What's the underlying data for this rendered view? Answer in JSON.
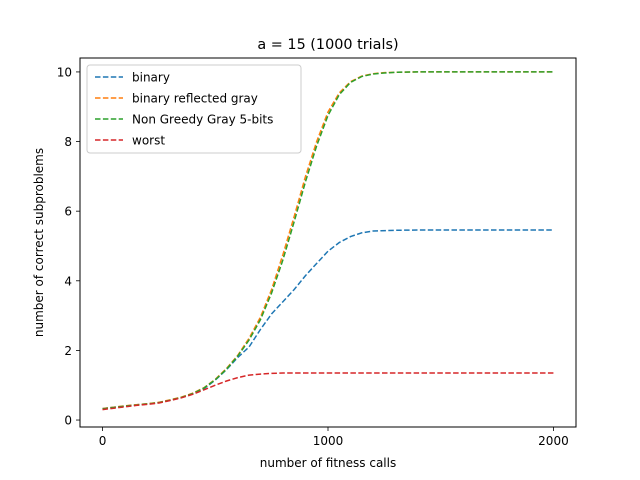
{
  "chart_data": {
    "type": "line",
    "title": "a = 15 (1000 trials)",
    "xlabel": "number of fitness calls",
    "ylabel": "number of correct subproblems",
    "xlim": [
      -100,
      2100
    ],
    "ylim": [
      -0.2,
      10.4
    ],
    "xticks": [
      0,
      1000,
      2000
    ],
    "yticks": [
      0,
      2,
      4,
      6,
      8,
      10
    ],
    "grid": false,
    "legend_position": "top-left",
    "series": [
      {
        "name": "binary",
        "color": "#1f77b4",
        "x": [
          0,
          50,
          100,
          150,
          200,
          250,
          300,
          350,
          400,
          450,
          500,
          550,
          600,
          650,
          700,
          750,
          800,
          850,
          900,
          950,
          1000,
          1050,
          1100,
          1150,
          1200,
          1300,
          1400,
          1500,
          1600,
          1700,
          1800,
          1900,
          2000
        ],
        "y": [
          0.33,
          0.37,
          0.4,
          0.44,
          0.47,
          0.5,
          0.57,
          0.65,
          0.75,
          0.9,
          1.15,
          1.45,
          1.8,
          2.1,
          2.6,
          3.05,
          3.4,
          3.75,
          4.15,
          4.5,
          4.85,
          5.1,
          5.27,
          5.38,
          5.43,
          5.45,
          5.46,
          5.46,
          5.46,
          5.46,
          5.46,
          5.46,
          5.46
        ]
      },
      {
        "name": "binary reflected gray",
        "color": "#ff7f0e",
        "x": [
          0,
          50,
          100,
          150,
          200,
          250,
          300,
          350,
          400,
          450,
          500,
          550,
          600,
          650,
          700,
          750,
          800,
          850,
          900,
          950,
          1000,
          1050,
          1100,
          1150,
          1200,
          1250,
          1300,
          1400,
          1500,
          1600,
          1700,
          1800,
          1900,
          2000
        ],
        "y": [
          0.33,
          0.37,
          0.41,
          0.44,
          0.47,
          0.51,
          0.58,
          0.66,
          0.77,
          0.93,
          1.17,
          1.48,
          1.86,
          2.35,
          2.95,
          3.75,
          4.75,
          5.85,
          7.0,
          8.0,
          8.85,
          9.4,
          9.72,
          9.88,
          9.95,
          9.98,
          9.99,
          10.0,
          10.0,
          10.0,
          10.0,
          10.0,
          10.0,
          10.0
        ]
      },
      {
        "name": "Non Greedy Gray 5-bits",
        "color": "#2ca02c",
        "x": [
          0,
          50,
          100,
          150,
          200,
          250,
          300,
          350,
          400,
          450,
          500,
          550,
          600,
          650,
          700,
          750,
          800,
          850,
          900,
          950,
          1000,
          1050,
          1100,
          1150,
          1200,
          1250,
          1300,
          1400,
          1500,
          1600,
          1700,
          1800,
          1900,
          2000
        ],
        "y": [
          0.32,
          0.36,
          0.4,
          0.43,
          0.46,
          0.5,
          0.57,
          0.65,
          0.76,
          0.92,
          1.16,
          1.46,
          1.84,
          2.3,
          2.88,
          3.65,
          4.6,
          5.7,
          6.85,
          7.88,
          8.75,
          9.35,
          9.7,
          9.87,
          9.94,
          9.97,
          9.99,
          10.0,
          10.0,
          10.0,
          10.0,
          10.0,
          10.0,
          10.0
        ]
      },
      {
        "name": "worst",
        "color": "#d62728",
        "x": [
          0,
          50,
          100,
          150,
          200,
          250,
          300,
          350,
          400,
          450,
          500,
          550,
          600,
          650,
          700,
          750,
          800,
          850,
          900,
          1000,
          1100,
          1200,
          1400,
          1600,
          1800,
          2000
        ],
        "y": [
          0.3,
          0.34,
          0.38,
          0.42,
          0.45,
          0.49,
          0.56,
          0.64,
          0.74,
          0.87,
          1.0,
          1.12,
          1.22,
          1.29,
          1.32,
          1.34,
          1.35,
          1.35,
          1.35,
          1.35,
          1.35,
          1.35,
          1.35,
          1.35,
          1.35,
          1.35
        ]
      }
    ]
  }
}
